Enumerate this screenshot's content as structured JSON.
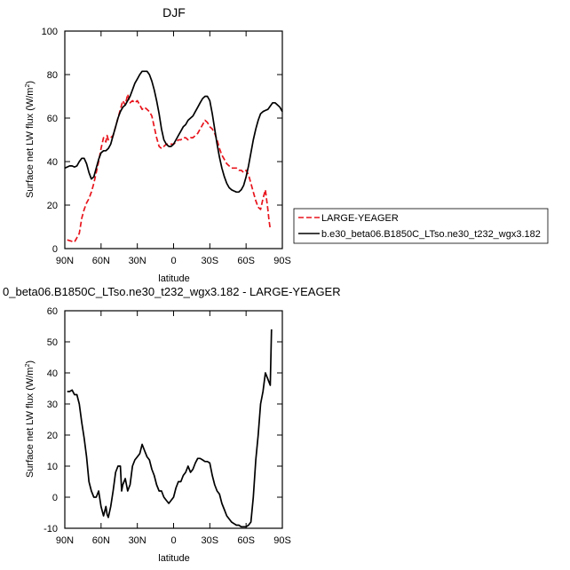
{
  "chart_data": [
    {
      "type": "line",
      "title": "DJF",
      "xlabel": "latitude",
      "ylabel": "Surface net LW flux (W/m",
      "ylabel_sup": "2",
      "ylabel_close": ")",
      "xlim": [
        90,
        -90
      ],
      "ylim": [
        0,
        100
      ],
      "xticks": [
        90,
        60,
        30,
        0,
        -30,
        -60,
        -90
      ],
      "xtick_labels": [
        "90N",
        "60N",
        "30N",
        "0",
        "30S",
        "60S",
        "90S"
      ],
      "yticks": [
        0,
        20,
        40,
        60,
        80,
        100
      ],
      "ytick_labels": [
        "0",
        "20",
        "40",
        "60",
        "80",
        "100"
      ],
      "legend_position": "right",
      "series": [
        {
          "name": "LARGE-YEAGER",
          "color": "#e8141c",
          "dash": "dashed",
          "x": [
            88,
            85,
            82,
            80,
            78,
            76,
            74,
            72,
            70,
            68,
            66,
            64,
            62,
            60,
            58,
            56,
            55,
            54,
            52,
            50,
            48,
            46,
            44,
            42,
            40,
            38,
            36,
            34,
            32,
            30,
            28,
            26,
            24,
            22,
            20,
            18,
            16,
            14,
            12,
            10,
            8,
            6,
            4,
            2,
            0,
            -2,
            -4,
            -6,
            -8,
            -10,
            -12,
            -14,
            -16,
            -18,
            -20,
            -22,
            -24,
            -26,
            -28,
            -30,
            -32,
            -34,
            -36,
            -38,
            -40,
            -42,
            -44,
            -46,
            -48,
            -50,
            -52,
            -54,
            -56,
            -58,
            -60,
            -62,
            -64,
            -66,
            -68,
            -70,
            -72,
            -74,
            -76,
            -78,
            -79,
            -80
          ],
          "y": [
            4,
            3.5,
            3,
            5,
            7,
            14,
            18,
            21,
            23,
            26,
            30,
            35,
            40,
            46,
            51,
            49,
            52,
            50,
            51,
            52,
            56,
            60,
            64,
            68,
            66,
            71,
            67,
            68,
            67,
            68,
            66,
            64,
            65,
            64,
            63,
            61,
            56,
            51,
            47,
            46,
            47,
            48,
            48,
            48,
            48,
            49,
            50,
            50,
            51,
            51,
            50,
            51,
            51,
            52,
            53,
            55,
            57,
            59,
            58,
            56,
            55,
            53,
            50,
            46,
            43,
            41,
            39,
            38,
            37,
            37,
            37,
            36,
            36,
            35,
            36,
            34,
            30,
            26,
            22,
            19,
            18,
            23,
            27,
            18,
            13,
            9
          ]
        },
        {
          "name": "b.e30_beta06.B1850C_LTso.ne30_t232_wgx3.182",
          "color": "#000000",
          "dash": "solid",
          "x": [
            90,
            88,
            86,
            84,
            82,
            80,
            78,
            76,
            74,
            72,
            70,
            68,
            66,
            64,
            62,
            60,
            58,
            56,
            54,
            52,
            50,
            48,
            46,
            44,
            42,
            40,
            38,
            36,
            34,
            32,
            30,
            28,
            26,
            24,
            22,
            20,
            18,
            16,
            14,
            12,
            10,
            8,
            6,
            4,
            2,
            0,
            -2,
            -4,
            -6,
            -8,
            -10,
            -12,
            -14,
            -16,
            -18,
            -20,
            -22,
            -24,
            -26,
            -28,
            -30,
            -32,
            -34,
            -36,
            -38,
            -40,
            -42,
            -44,
            -46,
            -48,
            -50,
            -52,
            -54,
            -56,
            -58,
            -60,
            -62,
            -64,
            -66,
            -68,
            -70,
            -72,
            -74,
            -76,
            -78,
            -80,
            -82,
            -84,
            -86,
            -88,
            -90
          ],
          "y": [
            37,
            37.5,
            38,
            38,
            37.5,
            38,
            40,
            41.5,
            41.5,
            39,
            35,
            32,
            33,
            37,
            41,
            44,
            45,
            45,
            46,
            48,
            52,
            56,
            60,
            63,
            65,
            66,
            68,
            70,
            73,
            76,
            78,
            80,
            81.5,
            81.5,
            81.5,
            80,
            77,
            73,
            68,
            62,
            55,
            50,
            48,
            47,
            47,
            48,
            50,
            52,
            54,
            56,
            57,
            59,
            60,
            61,
            63,
            65,
            67,
            69,
            70,
            70,
            68,
            62,
            55,
            48,
            42,
            37,
            33,
            30,
            28,
            27,
            26.5,
            26,
            26,
            27,
            29,
            33,
            38,
            44,
            50,
            55,
            59,
            62,
            63,
            63.5,
            64,
            65.5,
            67,
            67,
            66,
            65,
            63
          ]
        }
      ]
    },
    {
      "type": "line",
      "title": "0_beta06.B1850C_LTso.ne30_t232_wgx3.182 - LARGE-YEAGER",
      "xlabel": "latitude",
      "ylabel": "Surface net LW flux (W/m",
      "ylabel_sup": "2",
      "ylabel_close": ")",
      "xlim": [
        90,
        -90
      ],
      "ylim": [
        -10,
        60
      ],
      "xticks": [
        90,
        60,
        30,
        0,
        -30,
        -60,
        -90
      ],
      "xtick_labels": [
        "90N",
        "60N",
        "30N",
        "0",
        "30S",
        "60S",
        "90S"
      ],
      "yticks": [
        -10,
        0,
        10,
        20,
        30,
        40,
        50,
        60
      ],
      "ytick_labels": [
        "-10",
        "0",
        "10",
        "20",
        "30",
        "40",
        "50",
        "60"
      ],
      "series": [
        {
          "color": "#000000",
          "dash": "solid",
          "x": [
            88,
            86,
            84,
            82,
            80,
            78,
            76,
            74,
            72,
            70,
            68,
            66,
            64,
            62,
            60,
            58,
            56,
            55,
            54,
            52,
            50,
            48,
            46,
            44,
            43,
            42,
            40,
            38,
            36,
            34,
            32,
            30,
            28,
            26,
            24,
            22,
            20,
            18,
            16,
            14,
            12,
            10,
            8,
            6,
            4,
            2,
            0,
            -2,
            -4,
            -6,
            -8,
            -10,
            -12,
            -14,
            -16,
            -18,
            -20,
            -22,
            -24,
            -26,
            -28,
            -30,
            -32,
            -34,
            -36,
            -38,
            -40,
            -42,
            -44,
            -46,
            -48,
            -50,
            -52,
            -54,
            -56,
            -58,
            -60,
            -62,
            -64,
            -66,
            -68,
            -70,
            -72,
            -74,
            -76,
            -78,
            -80,
            -81
          ],
          "y": [
            34,
            34,
            34.5,
            33,
            33,
            30,
            24,
            19,
            13,
            5,
            2,
            0,
            0,
            2,
            -3,
            -6,
            -3,
            -5.5,
            -6.5,
            -3,
            2,
            8,
            10,
            10,
            2,
            4,
            6,
            2,
            4,
            10,
            12,
            13,
            14,
            17,
            15,
            13,
            12,
            9,
            7,
            4,
            2,
            2,
            0,
            -1,
            -2,
            -1,
            0,
            3,
            5,
            5,
            7,
            8,
            10,
            8,
            9,
            11,
            12.5,
            12.5,
            12,
            11.5,
            11.5,
            11,
            7,
            4,
            2,
            1,
            -2,
            -4,
            -6,
            -7,
            -8,
            -8.5,
            -9,
            -9,
            -9.5,
            -9.5,
            -9.5,
            -9,
            -8,
            0,
            12,
            20,
            30,
            34,
            40,
            38,
            36,
            54
          ]
        }
      ]
    }
  ]
}
